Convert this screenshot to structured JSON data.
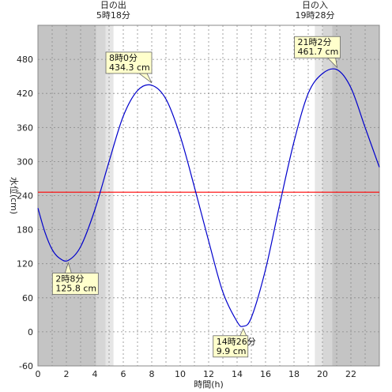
{
  "chart_data": {
    "type": "line",
    "xlabel": "時間(h)",
    "ylabel": "水位(cm)",
    "xlim": [
      0,
      24
    ],
    "ylim": [
      -60,
      540
    ],
    "x_ticks": [
      0,
      2,
      4,
      6,
      8,
      10,
      12,
      14,
      16,
      18,
      20,
      22
    ],
    "y_ticks": [
      -60,
      0,
      60,
      120,
      180,
      240,
      300,
      360,
      420,
      480
    ],
    "reference_line": {
      "value": 246,
      "color": "#ff0000"
    },
    "sunrise": {
      "label": "日の出",
      "time": "5時18分",
      "hour": 5.3
    },
    "sunset": {
      "label": "日の入",
      "time": "19時28分",
      "hour": 19.47
    },
    "series": [
      {
        "color": "#0000cc",
        "x": [
          0,
          0.5,
          1,
          1.5,
          2.13,
          3,
          4,
          5,
          6,
          7,
          8,
          9,
          10,
          11,
          12,
          13,
          14,
          14.43,
          15,
          16,
          17,
          18,
          19,
          20,
          21.03,
          22,
          23,
          24
        ],
        "y": [
          218,
          175,
          145,
          130,
          125.8,
          150,
          215,
          300,
          380,
          425,
          434.3,
          410,
          345,
          255,
          160,
          70,
          18,
          9.9,
          25,
          110,
          225,
          335,
          420,
          455,
          461.7,
          430,
          360,
          290
        ]
      }
    ],
    "annotations": [
      {
        "time": "2時8分",
        "value": "125.8 cm",
        "x": 2.13,
        "y": 125.8
      },
      {
        "time": "8時0分",
        "value": "434.3 cm",
        "x": 8.0,
        "y": 434.3
      },
      {
        "time": "14時26分",
        "value": "9.9 cm",
        "x": 14.43,
        "y": 9.9
      },
      {
        "time": "21時2分",
        "value": "461.7 cm",
        "x": 21.03,
        "y": 461.7
      }
    ]
  }
}
